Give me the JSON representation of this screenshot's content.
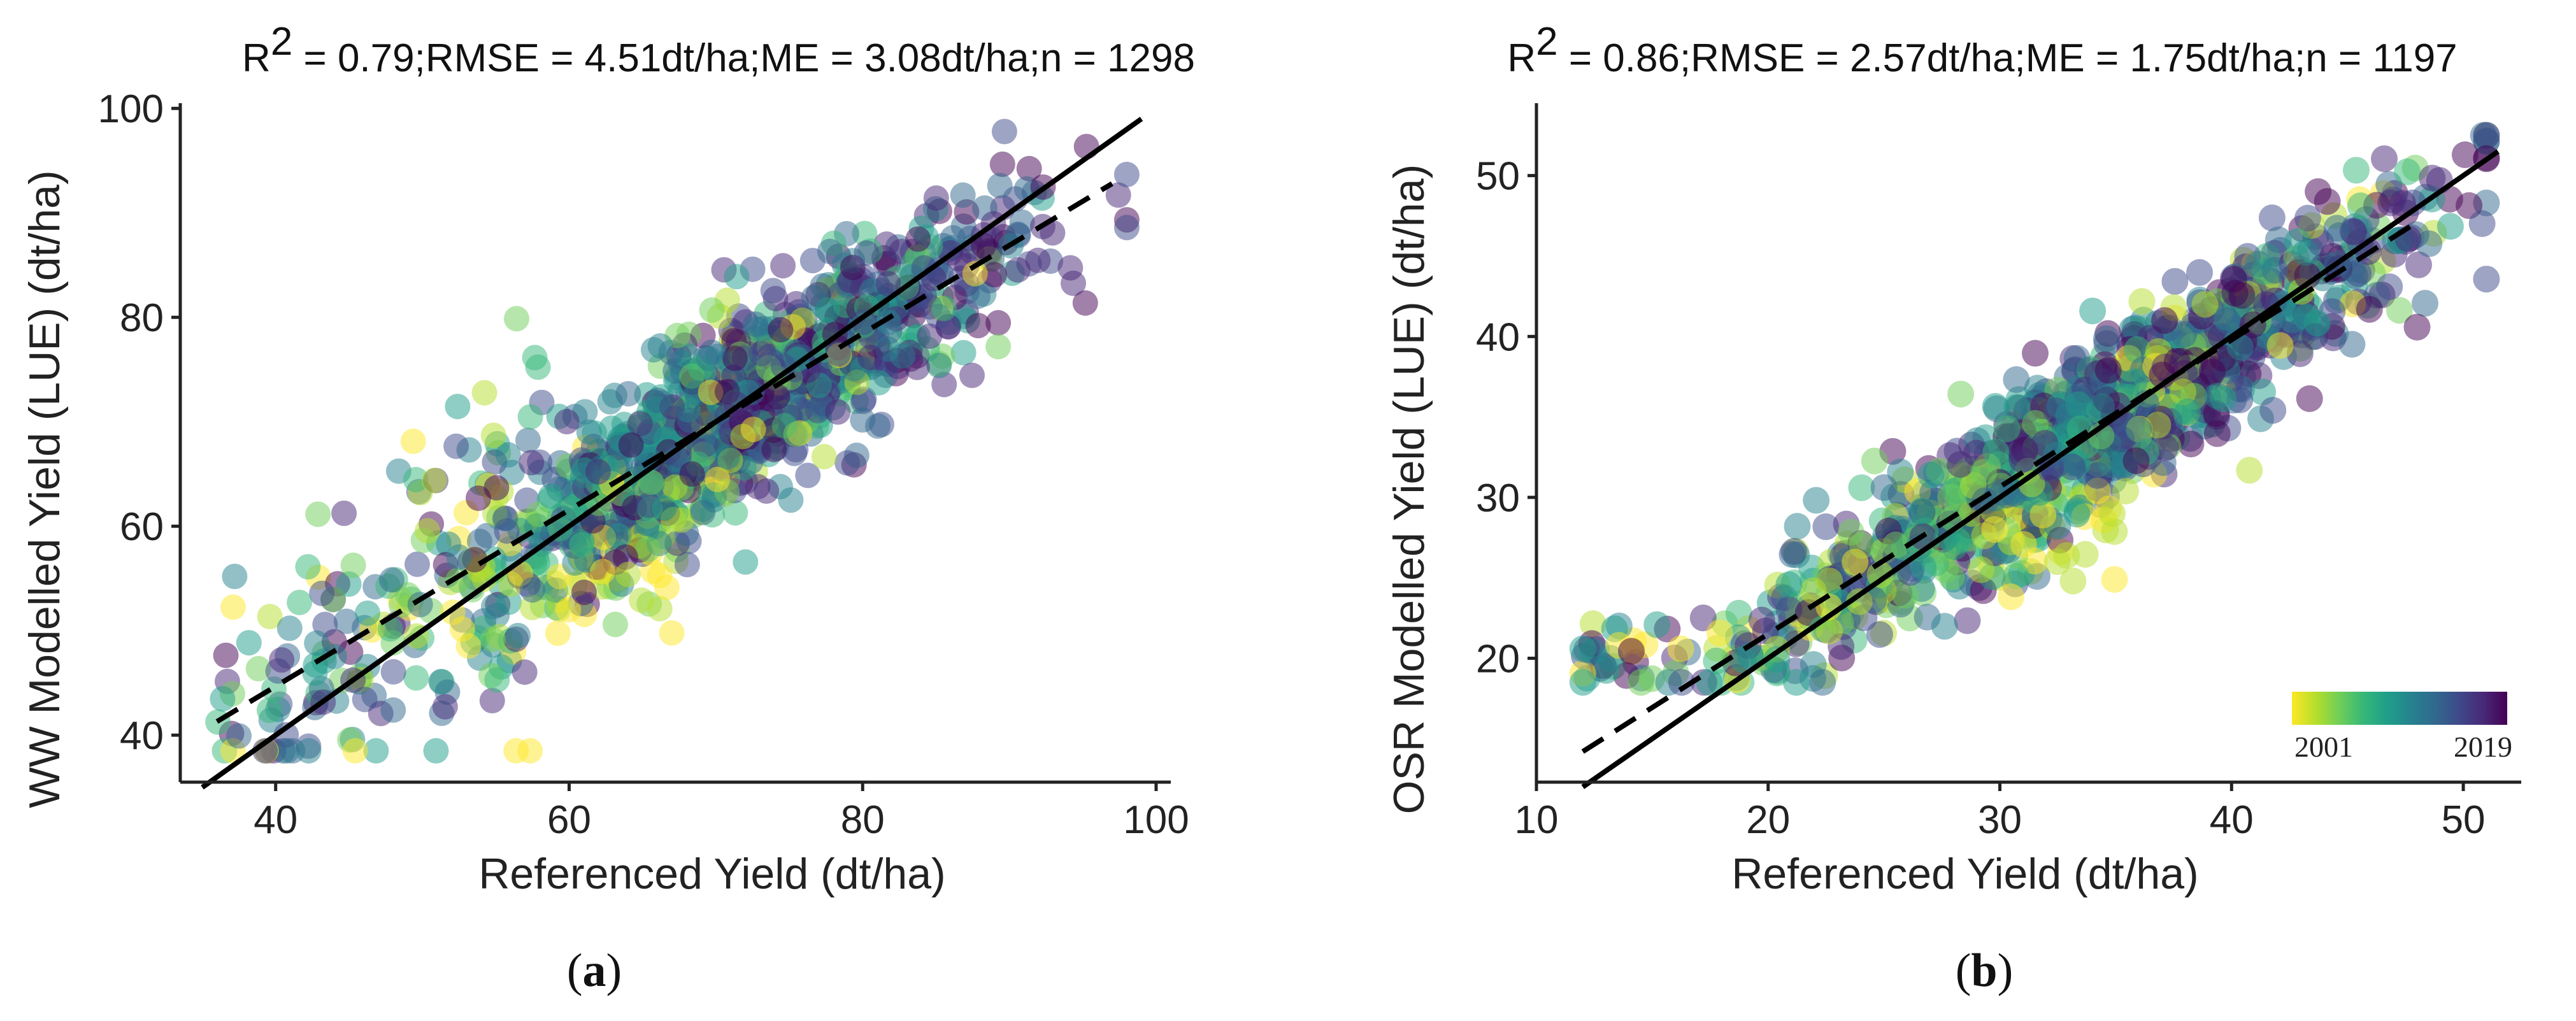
{
  "colors": {
    "viridis": [
      "#fde725",
      "#b5de2b",
      "#6ece58",
      "#35b779",
      "#1f9e89",
      "#26828e",
      "#31688e",
      "#3e4989",
      "#482878",
      "#440154"
    ],
    "point_opacity": 0.5,
    "axis": "#222222",
    "fit_line": "#000000"
  },
  "chart_data": [
    {
      "id": "a",
      "type": "scatter",
      "panel_label_prefix": "(",
      "panel_label_letter": "a",
      "panel_label_suffix": ")",
      "stats": {
        "r_pre": "R",
        "r_sup": "2",
        "rest": " = 0.79;RMSE = 4.51dt/ha;ME = 3.08dt/ha;n = 1298"
      },
      "xlabel": "Referenced Yield (dt/ha)",
      "ylabel": "WW Modelled Yield (LUE) (dt/ha)",
      "xlim": [
        33.5,
        101
      ],
      "ylim": [
        35.5,
        100.5
      ],
      "xticks": [
        40,
        60,
        80,
        100
      ],
      "yticks": [
        40,
        60,
        80,
        100
      ],
      "n": 1298,
      "one_to_one_line": {
        "x": [
          35,
          99
        ],
        "y": [
          35,
          99
        ]
      },
      "regression_line": {
        "x": [
          36,
          97
        ],
        "y": [
          41.3,
          92.8
        ]
      },
      "year_range": [
        2001,
        2019
      ]
    },
    {
      "id": "b",
      "type": "scatter",
      "panel_label_prefix": "(",
      "panel_label_letter": "b",
      "panel_label_suffix": ")",
      "stats": {
        "r_pre": "R",
        "r_sup": "2",
        "rest": " = 0.86;RMSE = 2.57dt/ha;ME = 1.75dt/ha;n = 1197"
      },
      "xlabel": "Referenced Yield (dt/ha)",
      "ylabel": "OSR Modelled Yield (LUE) (dt/ha)",
      "xlim": [
        10,
        52.5
      ],
      "ylim": [
        12.3,
        54.5
      ],
      "xticks": [
        10,
        20,
        30,
        40,
        50
      ],
      "yticks": [
        20,
        30,
        40,
        50
      ],
      "n": 1197,
      "one_to_one_line": {
        "x": [
          12,
          51.5
        ],
        "y": [
          12,
          51.5
        ]
      },
      "regression_line": {
        "x": [
          12,
          48
        ],
        "y": [
          14.2,
          47.1
        ]
      },
      "year_range": [
        2001,
        2019
      ],
      "legend": {
        "type": "colorbar",
        "position": "bottom-right",
        "min_label": "2001",
        "max_label": "2019"
      }
    }
  ]
}
